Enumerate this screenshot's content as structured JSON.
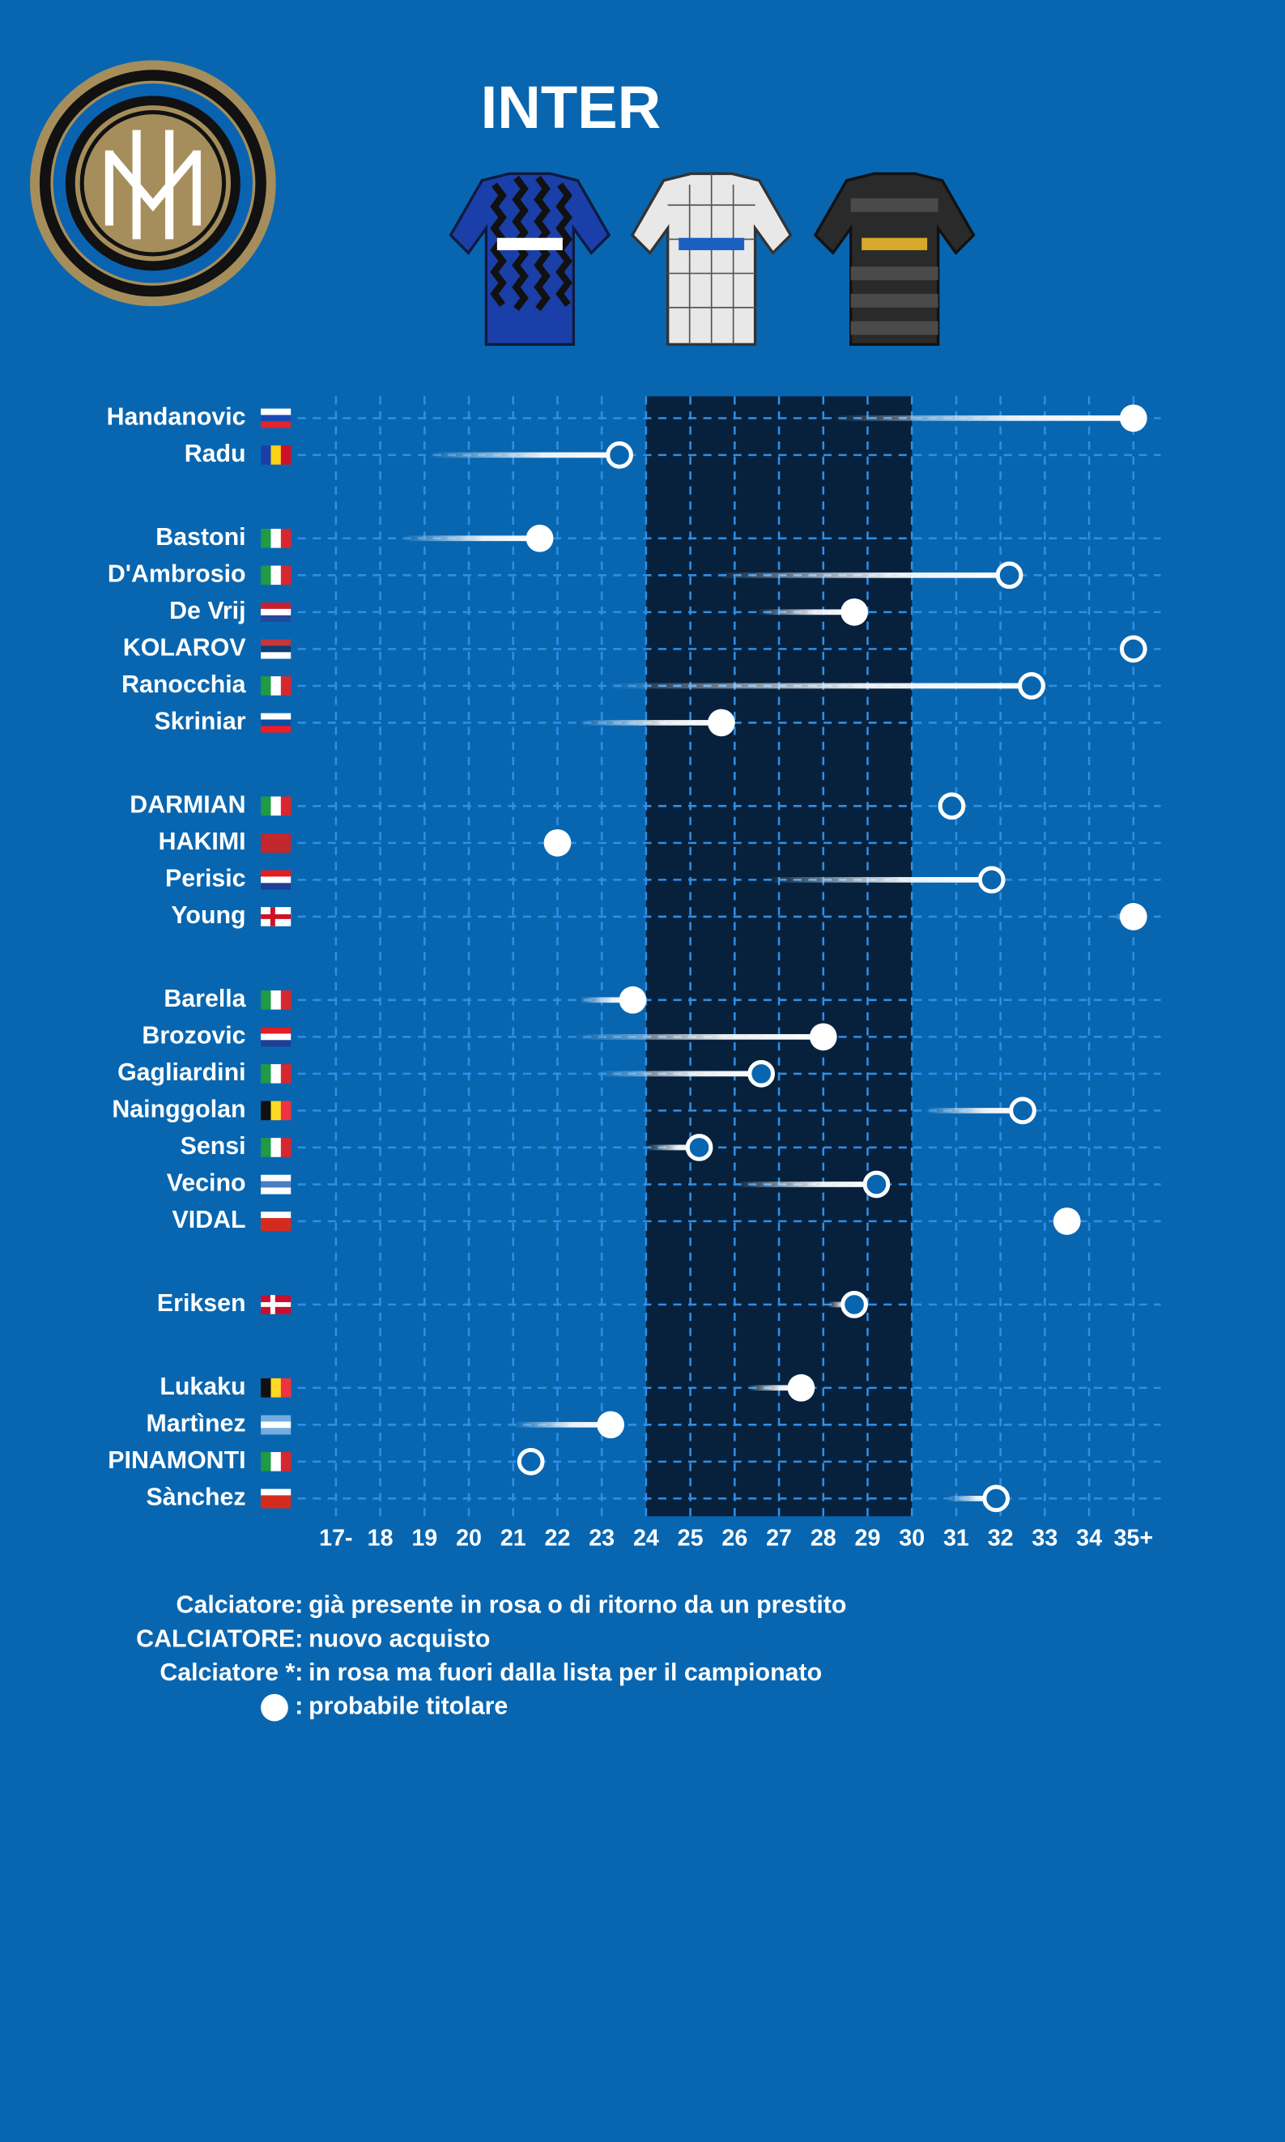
{
  "chart_data": {
    "type": "lollipop",
    "title": "INTER",
    "categories": [
      "Handanovic",
      "Radu",
      null,
      "Bastoni",
      "D'Ambrosio",
      "De Vrij",
      "KOLAROV",
      "Ranocchia",
      "Skriniar",
      null,
      "DARMIAN",
      "HAKIMI",
      "Perisic",
      "Young",
      null,
      "Barella",
      "Brozovic",
      "Gagliardini",
      "Nainggolan",
      "Sensi",
      "Vecino",
      "VIDAL",
      null,
      "Eriksen",
      null,
      "Lukaku",
      "Martìnez",
      "PINAMONTI",
      "Sànchez"
    ],
    "values": [
      35,
      23.4,
      null,
      21.6,
      32.2,
      28.7,
      35,
      32.7,
      25.7,
      null,
      30.9,
      22,
      31.8,
      35,
      null,
      23.7,
      28,
      26.6,
      32.5,
      25.2,
      29.2,
      33.5,
      null,
      28.7,
      null,
      27.5,
      23.2,
      21.4,
      31.9
    ],
    "start": [
      28.2,
      19.1,
      null,
      18.5,
      25.5,
      26.5,
      null,
      23.1,
      22.5,
      null,
      null,
      null,
      26.7,
      34.6,
      null,
      22.5,
      22.4,
      22.9,
      30.3,
      24,
      26,
      null,
      null,
      28.1,
      null,
      26.3,
      21,
      null,
      30.8
    ],
    "starter": [
      true,
      false,
      null,
      true,
      false,
      true,
      false,
      false,
      true,
      null,
      false,
      true,
      false,
      true,
      null,
      true,
      true,
      false,
      false,
      false,
      false,
      true,
      null,
      false,
      null,
      true,
      true,
      false,
      false
    ],
    "flags": [
      {
        "dir": "h",
        "colors": [
          "#ffffff",
          "#1a49b5",
          "#e0262b"
        ]
      },
      {
        "dir": "v",
        "colors": [
          "#1a3fa8",
          "#fcd116",
          "#ce1126"
        ]
      },
      null,
      {
        "dir": "v",
        "colors": [
          "#1f9a45",
          "#ffffff",
          "#d8262f"
        ]
      },
      {
        "dir": "v",
        "colors": [
          "#1f9a45",
          "#ffffff",
          "#d8262f"
        ]
      },
      {
        "dir": "h",
        "colors": [
          "#c8202f",
          "#ffffff",
          "#23479a"
        ]
      },
      {
        "dir": "h",
        "colors": [
          "#c6363c",
          "#0c4076",
          "#ffffff"
        ]
      },
      {
        "dir": "v",
        "colors": [
          "#1f9a45",
          "#ffffff",
          "#d8262f"
        ]
      },
      {
        "dir": "h",
        "colors": [
          "#ffffff",
          "#0b4ea2",
          "#ee1c25"
        ]
      },
      null,
      {
        "dir": "v",
        "colors": [
          "#1f9a45",
          "#ffffff",
          "#d8262f"
        ]
      },
      {
        "dir": "h",
        "colors": [
          "#c1272d",
          "#c1272d",
          "#c1272d"
        ]
      },
      {
        "dir": "h",
        "colors": [
          "#e21d23",
          "#ffffff",
          "#1d3f95"
        ]
      },
      {
        "dir": "cross",
        "colors": [
          "#ffffff",
          "#ce1124"
        ]
      },
      null,
      {
        "dir": "v",
        "colors": [
          "#1f9a45",
          "#ffffff",
          "#d8262f"
        ]
      },
      {
        "dir": "h",
        "colors": [
          "#e21d23",
          "#ffffff",
          "#1d3f95"
        ]
      },
      {
        "dir": "v",
        "colors": [
          "#1f9a45",
          "#ffffff",
          "#d8262f"
        ]
      },
      {
        "dir": "v",
        "colors": [
          "#111111",
          "#fdda24",
          "#ef3340"
        ]
      },
      {
        "dir": "v",
        "colors": [
          "#1f9a45",
          "#ffffff",
          "#d8262f"
        ]
      },
      {
        "dir": "h",
        "colors": [
          "#ffffff",
          "#4b7ec2",
          "#ffffff"
        ]
      },
      {
        "dir": "h",
        "colors": [
          "#ffffff",
          "#d52b1e",
          "#d52b1e"
        ]
      },
      null,
      {
        "dir": "cross",
        "colors": [
          "#c8102e",
          "#ffffff"
        ]
      },
      null,
      {
        "dir": "v",
        "colors": [
          "#111111",
          "#fdda24",
          "#ef3340"
        ]
      },
      {
        "dir": "h",
        "colors": [
          "#74acdf",
          "#ffffff",
          "#74acdf"
        ]
      },
      {
        "dir": "v",
        "colors": [
          "#1f9a45",
          "#ffffff",
          "#d8262f"
        ]
      },
      {
        "dir": "h",
        "colors": [
          "#ffffff",
          "#d52b1e",
          "#d52b1e"
        ]
      }
    ],
    "xlim": [
      17,
      35
    ],
    "xticks": [
      {
        "value": 17,
        "label": "17-"
      },
      18,
      19,
      20,
      21,
      22,
      23,
      24,
      25,
      26,
      27,
      28,
      29,
      30,
      31,
      32,
      33,
      34,
      {
        "value": 35,
        "label": "35+"
      }
    ],
    "highlight": [
      24,
      30
    ],
    "grid": true,
    "color": "#ffffff",
    "legend": [
      {
        "label": "Calciatore:",
        "text": "già presente in rosa o di ritorno da un prestito"
      },
      {
        "label": "CALCIATORE:",
        "text": "nuovo acquisto"
      },
      {
        "label": "Calciatore *:",
        "text": "in rosa ma fuori dalla lista per il campionato"
      },
      {
        "label": ":",
        "text": "probabile titolare"
      }
    ]
  }
}
